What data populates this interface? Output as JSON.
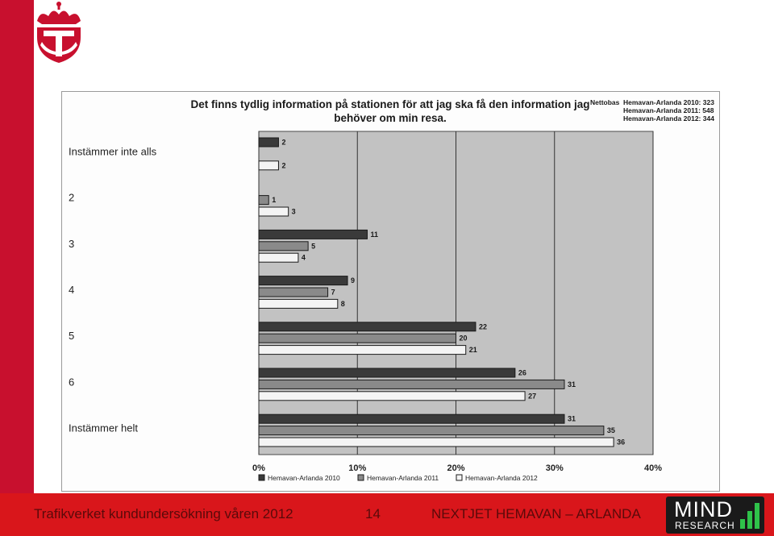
{
  "footer": {
    "left_text": "Trafikverket kundundersökning våren 2012",
    "page_number": "14",
    "right_text": "NEXTJET HEMAVAN – ARLANDA"
  },
  "brand": {
    "logo_word": "MIND",
    "logo_sub": "RESEARCH",
    "accent_color": "#d9161b",
    "crown_logo_icon": "crown-t-emblem-icon"
  },
  "chart_data": {
    "type": "bar",
    "orientation": "horizontal",
    "title": "Det finns tydlig information på stationen för att jag ska få den information jag behöver om min resa.",
    "base_heading": "Nettobas",
    "base_lines": [
      "Hemavan-Arlanda 2010: 323",
      "Hemavan-Arlanda 2011: 548",
      "Hemavan-Arlanda 2012: 344"
    ],
    "categories": [
      "Instämmer inte alls",
      "2",
      "3",
      "4",
      "5",
      "6",
      "Instämmer helt"
    ],
    "series": [
      {
        "name": "Hemavan-Arlanda 2010",
        "values": [
          2,
          null,
          11,
          9,
          22,
          26,
          31
        ],
        "color": "#3a3a3a"
      },
      {
        "name": "Hemavan-Arlanda 2011",
        "values": [
          null,
          1,
          5,
          7,
          20,
          31,
          35
        ],
        "color": "#8a8a8a"
      },
      {
        "name": "Hemavan-Arlanda 2012",
        "values": [
          2,
          3,
          4,
          8,
          21,
          27,
          36
        ],
        "color": "#f4f4f4"
      }
    ],
    "xlim": [
      0,
      40
    ],
    "x_ticks": [
      "0%",
      "10%",
      "20%",
      "30%",
      "40%"
    ],
    "grid": true,
    "legend_position": "bottom",
    "value_labels": true
  }
}
